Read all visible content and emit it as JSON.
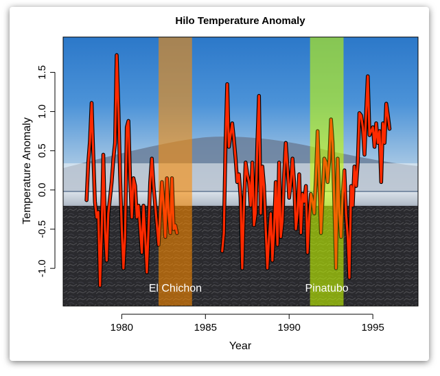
{
  "chart_data": {
    "type": "line",
    "title": "Hilo Temperature Anomaly",
    "xlabel": "Year",
    "ylabel": "Temperature Anomaly",
    "xlim": [
      1976.5,
      1997.7
    ],
    "ylim": [
      -1.48,
      1.95
    ],
    "x_ticks": [
      1980,
      1985,
      1990,
      1995
    ],
    "x_tick_labels": [
      "1980",
      "1985",
      "1990",
      "1995"
    ],
    "y_ticks": [
      -1.0,
      -0.5,
      0.0,
      0.5,
      1.0,
      1.5
    ],
    "y_tick_labels": [
      "-1.0",
      "-0.5",
      "0.0",
      "0.5",
      "1.0",
      "1.5"
    ],
    "line_color": "#ff2a00",
    "line_outline_color": "#000000",
    "background": "photo of Mauna Kea behind lava field",
    "bands": [
      {
        "name": "El Chichon",
        "label": "El Chichon",
        "start": 1982.2,
        "end": 1984.2,
        "color": "#ff8c00"
      },
      {
        "name": "Pinatubo",
        "label": "Pinatubo",
        "start": 1991.25,
        "end": 1993.25,
        "color": "#c8ff00"
      }
    ],
    "series": [
      {
        "segment": 1,
        "x": [
          1977.9,
          1978.0,
          1978.1,
          1978.2,
          1978.3,
          1978.4,
          1978.5,
          1978.6,
          1978.7,
          1978.8,
          1978.9,
          1979.0,
          1979.1,
          1979.2,
          1979.3,
          1979.4,
          1979.5,
          1979.6,
          1979.7,
          1979.8,
          1979.9,
          1980.0,
          1980.1,
          1980.2,
          1980.3,
          1980.4,
          1980.5,
          1980.6,
          1980.7,
          1980.8,
          1980.9,
          1981.0,
          1981.1,
          1981.2,
          1981.3,
          1981.4,
          1981.5,
          1981.6,
          1981.7,
          1981.8,
          1981.9,
          1982.0,
          1982.1,
          1982.2,
          1982.3,
          1982.4,
          1982.5,
          1982.6,
          1982.7,
          1982.8,
          1982.9,
          1983.0,
          1983.1,
          1983.2,
          1983.3
        ],
        "y": [
          -0.13,
          0.35,
          0.62,
          1.11,
          0.45,
          -0.15,
          -0.35,
          -0.28,
          -1.22,
          -0.55,
          0.45,
          -0.5,
          -0.9,
          -0.3,
          -0.1,
          0.1,
          0.4,
          0.6,
          1.72,
          1.05,
          0.2,
          -0.5,
          -1.0,
          -0.6,
          0.8,
          0.88,
          0.15,
          -0.35,
          0.15,
          0.05,
          -0.35,
          -0.2,
          -0.5,
          -0.8,
          -0.2,
          -0.6,
          -1.05,
          -0.5,
          0.1,
          0.4,
          0.05,
          -0.2,
          -0.45,
          -0.7,
          -0.3,
          0.1,
          -0.2,
          -0.6,
          0.15,
          -0.3,
          -0.55,
          0.15,
          -0.5,
          -0.45,
          -0.55
        ]
      },
      {
        "segment": 2,
        "x": [
          1986.0,
          1986.1,
          1986.2,
          1986.3,
          1986.4,
          1986.5,
          1986.6,
          1986.7,
          1986.8,
          1986.9,
          1987.0,
          1987.1,
          1987.2,
          1987.3,
          1987.4,
          1987.5,
          1987.6,
          1987.7,
          1987.8,
          1987.9,
          1988.0,
          1988.1,
          1988.2,
          1988.3,
          1988.4,
          1988.5,
          1988.6,
          1988.7,
          1988.8,
          1988.9,
          1989.0,
          1989.1,
          1989.2,
          1989.3,
          1989.4,
          1989.5,
          1989.6,
          1989.7,
          1989.8,
          1989.9,
          1990.0,
          1990.1,
          1990.2,
          1990.3,
          1990.4,
          1990.5,
          1990.6,
          1990.7,
          1990.8,
          1990.9,
          1991.0,
          1991.1,
          1991.2,
          1991.3,
          1991.4,
          1991.5,
          1991.6,
          1991.7,
          1991.8,
          1991.9,
          1992.0,
          1992.1,
          1992.2,
          1992.3,
          1992.4,
          1992.5,
          1992.6,
          1992.7,
          1992.8,
          1992.9,
          1993.0,
          1993.1,
          1993.2,
          1993.3,
          1993.4,
          1993.5,
          1993.6,
          1993.7,
          1993.8,
          1993.9,
          1994.0,
          1994.1,
          1994.2,
          1994.3,
          1994.4,
          1994.5,
          1994.6,
          1994.7,
          1994.8,
          1994.9,
          1995.0,
          1995.1,
          1995.2,
          1995.3,
          1995.4,
          1995.5,
          1995.6,
          1995.7,
          1995.8,
          1995.9,
          1996.0
        ],
        "y": [
          -0.78,
          -0.55,
          0.6,
          1.35,
          0.55,
          0.7,
          0.85,
          0.65,
          0.4,
          0.1,
          0.2,
          -0.1,
          -1.0,
          -0.2,
          0.35,
          0.2,
          0.1,
          -0.2,
          0.35,
          -0.45,
          -0.3,
          0.6,
          1.2,
          -0.3,
          0.3,
          0.05,
          -0.5,
          -1.0,
          -0.6,
          -0.3,
          -0.9,
          -0.5,
          0.1,
          -0.7,
          0.35,
          -0.6,
          -0.4,
          0.2,
          0.6,
          0.3,
          -0.1,
          0.1,
          0.4,
          0.1,
          -0.5,
          -0.3,
          0.2,
          -0.55,
          -0.05,
          -0.15,
          0.05,
          -0.8,
          -0.35,
          -0.05,
          -0.15,
          -0.3,
          0.15,
          0.75,
          0.1,
          -0.55,
          -0.1,
          0.4,
          0.35,
          0.1,
          0.4,
          0.9,
          0.6,
          -0.2,
          -1.0,
          0.4,
          -0.3,
          -0.6,
          -0.05,
          0.25,
          -0.3,
          -0.6,
          -1.12,
          0.05,
          -0.2,
          0.3,
          0.05,
          0.35,
          0.98,
          0.95,
          0.8,
          0.45,
          1.0,
          1.45,
          0.7,
          0.75,
          0.8,
          0.55,
          0.85,
          0.6,
          0.75,
          0.1,
          0.85,
          0.6,
          1.1,
          0.95,
          0.78
        ]
      }
    ]
  }
}
